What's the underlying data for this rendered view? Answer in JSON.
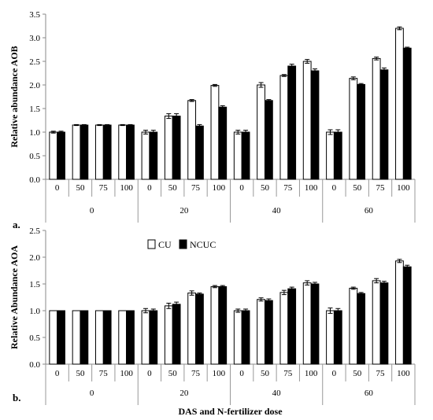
{
  "chart_data": [
    {
      "type": "bar",
      "panel_label": "a.",
      "ylabel": "Relative abundance AOB",
      "xlabel": "",
      "ylim": [
        0,
        3.5
      ],
      "yticks": [
        "0.0",
        "0.5",
        "1.0",
        "1.5",
        "2.0",
        "2.5",
        "3.0",
        "3.5"
      ],
      "groups": [
        "0",
        "20",
        "40",
        "60"
      ],
      "categories": [
        "0",
        "50",
        "75",
        "100",
        "0",
        "50",
        "75",
        "100",
        "0",
        "50",
        "75",
        "100",
        "0",
        "50",
        "75",
        "100"
      ],
      "series": [
        {
          "name": "CU",
          "color": "#ffffff",
          "values": [
            1.0,
            1.15,
            1.15,
            1.15,
            1.0,
            1.34,
            1.67,
            1.99,
            1.0,
            2.0,
            2.2,
            2.5,
            1.0,
            2.14,
            2.56,
            3.2
          ],
          "errors": [
            0.02,
            0.01,
            0.01,
            0.01,
            0.04,
            0.05,
            0.02,
            0.02,
            0.04,
            0.05,
            0.02,
            0.04,
            0.05,
            0.03,
            0.03,
            0.03
          ]
        },
        {
          "name": "NCUC",
          "color": "#000000",
          "values": [
            1.0,
            1.15,
            1.15,
            1.15,
            1.0,
            1.34,
            1.13,
            1.53,
            1.0,
            1.67,
            2.4,
            2.3,
            1.0,
            2.01,
            2.32,
            2.78
          ],
          "errors": [
            0.02,
            0.01,
            0.01,
            0.01,
            0.04,
            0.05,
            0.03,
            0.03,
            0.04,
            0.02,
            0.04,
            0.04,
            0.05,
            0.02,
            0.04,
            0.02
          ]
        }
      ],
      "legend_visible": false,
      "grid": false
    },
    {
      "type": "bar",
      "panel_label": "b.",
      "ylabel": "Relative Abundance AOA",
      "xlabel": "DAS and N-fertilizer dose",
      "ylim": [
        0,
        2.5
      ],
      "yticks": [
        "0.0",
        "0.5",
        "1.0",
        "1.5",
        "2.0",
        "2.5"
      ],
      "groups": [
        "0",
        "20",
        "40",
        "60"
      ],
      "categories": [
        "0",
        "50",
        "75",
        "100",
        "0",
        "50",
        "75",
        "100",
        "0",
        "50",
        "75",
        "100",
        "0",
        "50",
        "75",
        "100"
      ],
      "series": [
        {
          "name": "CU",
          "color": "#ffffff",
          "values": [
            1.0,
            1.0,
            1.0,
            1.0,
            1.0,
            1.09,
            1.33,
            1.45,
            1.0,
            1.21,
            1.34,
            1.52,
            1.0,
            1.42,
            1.56,
            1.93
          ],
          "errors": [
            0.0,
            0.0,
            0.0,
            0.0,
            0.04,
            0.05,
            0.04,
            0.02,
            0.03,
            0.03,
            0.04,
            0.04,
            0.05,
            0.02,
            0.04,
            0.03
          ]
        },
        {
          "name": "NCUC",
          "color": "#000000",
          "values": [
            1.0,
            1.0,
            1.0,
            1.0,
            1.0,
            1.12,
            1.31,
            1.45,
            1.0,
            1.19,
            1.41,
            1.5,
            1.0,
            1.32,
            1.52,
            1.82
          ],
          "errors": [
            0.0,
            0.0,
            0.0,
            0.0,
            0.03,
            0.04,
            0.02,
            0.02,
            0.03,
            0.03,
            0.03,
            0.03,
            0.04,
            0.02,
            0.03,
            0.03
          ]
        }
      ],
      "legend_visible": true,
      "legend_position": "top-left",
      "grid": false
    }
  ]
}
